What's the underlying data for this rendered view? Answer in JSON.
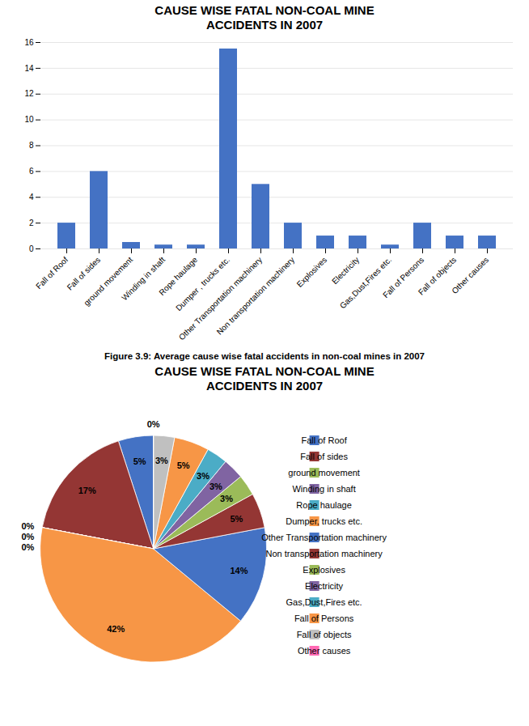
{
  "chart_data": [
    {
      "type": "bar",
      "title": "CAUSE WISE FATAL NON-COAL MINE\nACCIDENTS IN 2007",
      "categories": [
        "Fall of Roof",
        "Fall of sides",
        "ground movement",
        "Winding in shaft",
        "Rope haulage",
        "Dumper , trucks etc.",
        "Other Transportation machinery",
        "Non transportation machinery",
        "Explosives",
        "Electricity",
        "Gas,Dust,Fires etc.",
        "Fall of Persons",
        "Fall of objects",
        "Other causes"
      ],
      "values": [
        2,
        6,
        0.5,
        0.3,
        0.3,
        15.5,
        5,
        2,
        1,
        1,
        0.3,
        2,
        1,
        1
      ],
      "color": "#4472C4",
      "ylim": [
        0,
        16
      ],
      "yticks": [
        0,
        2,
        4,
        6,
        8,
        10,
        12,
        14,
        16
      ],
      "grid": true,
      "annotations": [
        "Figure 3.9: Average cause wise fatal accidents in non-coal mines in 2007"
      ]
    },
    {
      "type": "pie",
      "title": "CAUSE WISE FATAL NON-COAL MINE\nACCIDENTS IN 2007",
      "categories": [
        "Fall of Roof",
        "Fall of sides",
        "ground movement",
        "Winding in shaft",
        "Rope haulage",
        "Dumper, trucks etc.",
        "Other Transportation machinery",
        "Non transportation machinery",
        "Explosives",
        "Electricity",
        "Gas,Dust,Fires etc.",
        "Fall of Persons",
        "Fall of objects",
        "Other causes"
      ],
      "values": [
        5,
        17,
        0,
        0,
        0,
        42,
        14,
        5,
        3,
        3,
        3,
        5,
        3,
        0
      ],
      "value_labels": [
        "5%",
        "17%",
        "0%",
        "0%",
        "0%",
        "42%",
        "14%",
        "5%",
        "3%",
        "3%",
        "3%",
        "5%",
        "3%",
        "0%"
      ],
      "colors": [
        "#4472C4",
        "#943634",
        "#9BBB59",
        "#8064A2",
        "#4BACC6",
        "#F79646",
        "#4472C4",
        "#943634",
        "#9BBB59",
        "#8064A2",
        "#4BACC6",
        "#F79646",
        "#C0C0C0",
        "#FF69B4"
      ],
      "data_labels": true,
      "legend": "right"
    }
  ]
}
